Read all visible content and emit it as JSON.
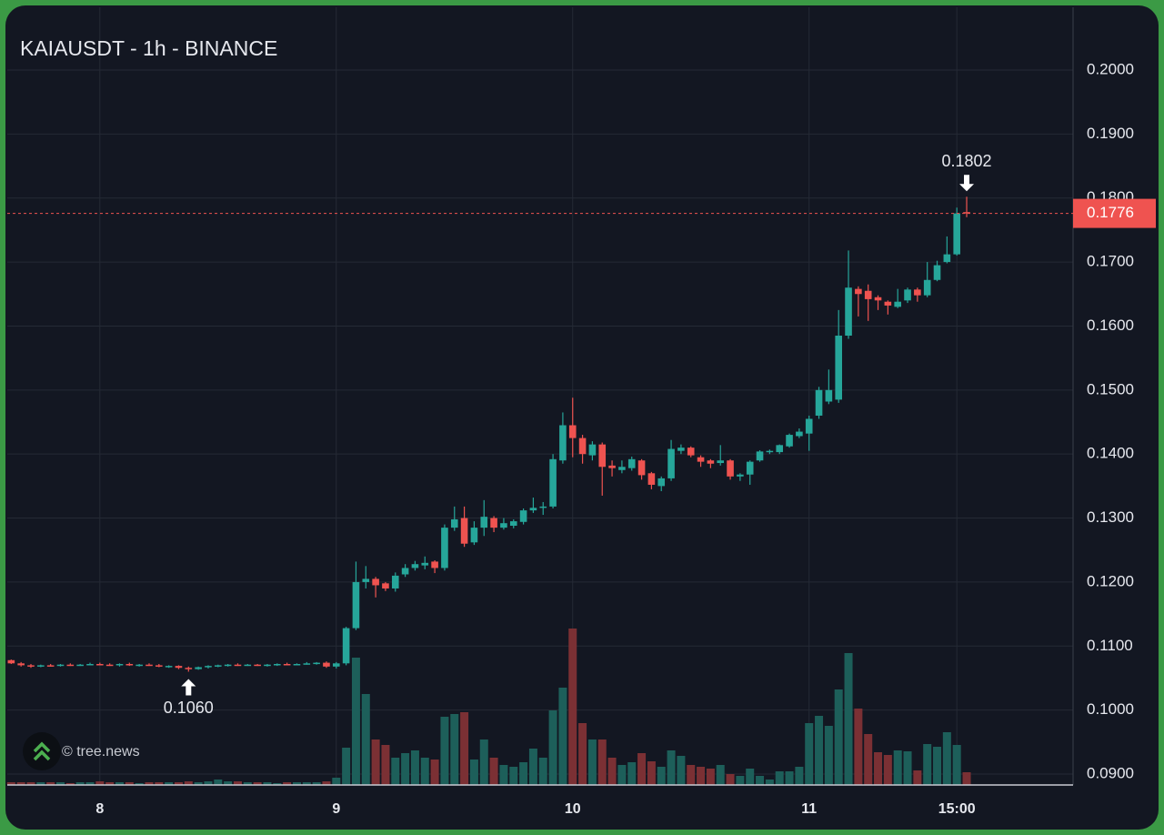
{
  "chart_data": {
    "type": "candlestick",
    "title": "KAIAUSDT - 1h - BINANCE",
    "watermark": "© tree.news",
    "up_color": "#26a69a",
    "down_color": "#ef5350",
    "up_volume_color": "#1d5f5a",
    "down_volume_color": "#7b3034",
    "grid": true,
    "xlim": [
      -9.4,
      98.8
    ],
    "ylim": [
      0.0883,
      0.2098
    ],
    "xticks": [
      {
        "value": 0,
        "label": "8"
      },
      {
        "value": 24,
        "label": "9"
      },
      {
        "value": 48,
        "label": "10"
      },
      {
        "value": 72,
        "label": "11"
      },
      {
        "value": 87,
        "label": "15:00"
      }
    ],
    "yticks": [
      {
        "value": 0.09,
        "label": "0.0900"
      },
      {
        "value": 0.1,
        "label": "0.1000"
      },
      {
        "value": 0.11,
        "label": "0.1100"
      },
      {
        "value": 0.12,
        "label": "0.1200"
      },
      {
        "value": 0.13,
        "label": "0.1300"
      },
      {
        "value": 0.14,
        "label": "0.1400"
      },
      {
        "value": 0.15,
        "label": "0.1500"
      },
      {
        "value": 0.16,
        "label": "0.1600"
      },
      {
        "value": 0.17,
        "label": "0.1700"
      },
      {
        "value": 0.18,
        "label": "0.1800"
      },
      {
        "value": 0.19,
        "label": "0.1900"
      },
      {
        "value": 0.2,
        "label": "0.2000"
      }
    ],
    "last_price": {
      "value": 0.1776,
      "label": "0.1776"
    },
    "annotations": [
      {
        "x": 88,
        "value": 0.1802,
        "label": "0.1802",
        "position": "above"
      },
      {
        "x": 9,
        "value": 0.106,
        "label": "0.1060",
        "position": "below"
      }
    ],
    "x": [
      -9,
      -8,
      -7,
      -6,
      -5,
      -4,
      -3,
      -2,
      -1,
      0,
      1,
      2,
      3,
      4,
      5,
      6,
      7,
      8,
      9,
      10,
      11,
      12,
      13,
      14,
      15,
      16,
      17,
      18,
      19,
      20,
      21,
      22,
      23,
      24,
      25,
      26,
      27,
      28,
      29,
      30,
      31,
      32,
      33,
      34,
      35,
      36,
      37,
      38,
      39,
      40,
      41,
      42,
      43,
      44,
      45,
      46,
      47,
      48,
      49,
      50,
      51,
      52,
      53,
      54,
      55,
      56,
      57,
      58,
      59,
      60,
      61,
      62,
      63,
      64,
      65,
      66,
      67,
      68,
      69,
      70,
      71,
      72,
      73,
      74,
      75,
      76,
      77,
      78,
      79,
      80,
      81,
      82,
      83,
      84,
      85,
      86,
      87,
      88
    ],
    "open": [
      0.1078,
      0.1073,
      0.107,
      0.1068,
      0.107,
      0.1069,
      0.1071,
      0.107,
      0.1071,
      0.1072,
      0.1071,
      0.107,
      0.1072,
      0.107,
      0.1071,
      0.107,
      0.1068,
      0.1069,
      0.1066,
      0.1064,
      0.1067,
      0.1069,
      0.107,
      0.1071,
      0.107,
      0.1071,
      0.107,
      0.1071,
      0.1072,
      0.1071,
      0.1072,
      0.1073,
      0.1074,
      0.1068,
      0.1073,
      0.1128,
      0.12,
      0.1205,
      0.1198,
      0.119,
      0.1212,
      0.1222,
      0.1226,
      0.1232,
      0.1222,
      0.1285,
      0.13,
      0.1262,
      0.1285,
      0.13,
      0.1285,
      0.1288,
      0.1294,
      0.1312,
      0.1316,
      0.1318,
      0.139,
      0.1445,
      0.1425,
      0.1398,
      0.1415,
      0.1382,
      0.1375,
      0.1378,
      0.139,
      0.137,
      0.135,
      0.1362,
      0.1405,
      0.141,
      0.1395,
      0.139,
      0.1386,
      0.139,
      0.1365,
      0.1368,
      0.139,
      0.1403,
      0.1403,
      0.1412,
      0.1428,
      0.1432,
      0.146,
      0.1482,
      0.1485,
      0.1585,
      0.1658,
      0.1655,
      0.1645,
      0.1638,
      0.163,
      0.164,
      0.1657,
      0.1648,
      0.1672,
      0.17,
      0.1712,
      0.1778
    ],
    "high": [
      0.1079,
      0.1075,
      0.1072,
      0.1071,
      0.1072,
      0.1072,
      0.1073,
      0.1072,
      0.1074,
      0.1074,
      0.1073,
      0.1073,
      0.1074,
      0.1072,
      0.1073,
      0.1072,
      0.107,
      0.107,
      0.1068,
      0.1068,
      0.107,
      0.1071,
      0.1072,
      0.1073,
      0.1072,
      0.1072,
      0.1072,
      0.1073,
      0.1074,
      0.1073,
      0.1075,
      0.1075,
      0.1076,
      0.1075,
      0.113,
      0.1232,
      0.1225,
      0.1208,
      0.12,
      0.1215,
      0.1228,
      0.1233,
      0.124,
      0.1234,
      0.129,
      0.1318,
      0.1318,
      0.1295,
      0.1328,
      0.1303,
      0.13,
      0.1298,
      0.1315,
      0.1332,
      0.1325,
      0.14,
      0.1465,
      0.1488,
      0.143,
      0.142,
      0.1418,
      0.139,
      0.139,
      0.1396,
      0.1392,
      0.1372,
      0.1365,
      0.1422,
      0.1415,
      0.1412,
      0.1398,
      0.1392,
      0.1414,
      0.1392,
      0.137,
      0.139,
      0.1406,
      0.1407,
      0.1415,
      0.1432,
      0.144,
      0.146,
      0.1505,
      0.1532,
      0.1625,
      0.1718,
      0.1662,
      0.1665,
      0.1648,
      0.164,
      0.1658,
      0.166,
      0.166,
      0.17,
      0.1702,
      0.174,
      0.1785,
      0.1802
    ],
    "low": [
      0.1072,
      0.1068,
      0.1066,
      0.1067,
      0.1068,
      0.1068,
      0.1069,
      0.1069,
      0.107,
      0.107,
      0.1069,
      0.1068,
      0.1069,
      0.1068,
      0.1069,
      0.1067,
      0.1066,
      0.1064,
      0.106,
      0.1063,
      0.1065,
      0.1067,
      0.1068,
      0.1069,
      0.1069,
      0.1069,
      0.1068,
      0.1069,
      0.107,
      0.107,
      0.1071,
      0.1071,
      0.1066,
      0.1065,
      0.107,
      0.1125,
      0.119,
      0.1176,
      0.1186,
      0.1185,
      0.1208,
      0.1218,
      0.122,
      0.1214,
      0.1218,
      0.128,
      0.1255,
      0.1258,
      0.1272,
      0.1278,
      0.1282,
      0.1284,
      0.129,
      0.1308,
      0.1305,
      0.1315,
      0.1385,
      0.1395,
      0.1385,
      0.139,
      0.1335,
      0.1365,
      0.137,
      0.1374,
      0.136,
      0.1345,
      0.1342,
      0.1358,
      0.14,
      0.1395,
      0.138,
      0.1378,
      0.1382,
      0.136,
      0.1358,
      0.1352,
      0.1388,
      0.14,
      0.14,
      0.141,
      0.1425,
      0.1405,
      0.1455,
      0.1478,
      0.148,
      0.158,
      0.1615,
      0.1608,
      0.1625,
      0.1618,
      0.1628,
      0.1636,
      0.1638,
      0.1645,
      0.167,
      0.1698,
      0.171,
      0.177
    ],
    "close": [
      0.1073,
      0.107,
      0.1068,
      0.107,
      0.1069,
      0.1071,
      0.107,
      0.1071,
      0.1072,
      0.1071,
      0.107,
      0.1072,
      0.107,
      0.1071,
      0.107,
      0.1068,
      0.1069,
      0.1066,
      0.1064,
      0.1067,
      0.1069,
      0.107,
      0.1071,
      0.107,
      0.1071,
      0.107,
      0.1071,
      0.1072,
      0.1071,
      0.1072,
      0.1073,
      0.1074,
      0.1068,
      0.1073,
      0.1128,
      0.12,
      0.1205,
      0.1195,
      0.119,
      0.121,
      0.1222,
      0.1228,
      0.123,
      0.1222,
      0.1285,
      0.1298,
      0.126,
      0.1285,
      0.1302,
      0.1285,
      0.1292,
      0.1295,
      0.1312,
      0.1316,
      0.1318,
      0.1392,
      0.1445,
      0.1425,
      0.14,
      0.1415,
      0.138,
      0.1378,
      0.138,
      0.1392,
      0.1367,
      0.1352,
      0.1362,
      0.1408,
      0.141,
      0.1398,
      0.1388,
      0.1385,
      0.139,
      0.1365,
      0.1368,
      0.1388,
      0.1404,
      0.1405,
      0.1414,
      0.143,
      0.1435,
      0.1455,
      0.15,
      0.15,
      0.1585,
      0.166,
      0.165,
      0.1642,
      0.164,
      0.1632,
      0.1638,
      0.1657,
      0.1648,
      0.1672,
      0.1695,
      0.1712,
      0.1776,
      0.1776
    ],
    "volume": [
      3,
      3,
      3,
      3,
      3,
      3,
      2,
      3,
      3,
      4,
      3,
      3,
      3,
      2,
      3,
      3,
      3,
      3,
      4,
      3,
      4,
      6,
      4,
      4,
      3,
      3,
      3,
      2,
      3,
      3,
      3,
      3,
      4,
      8,
      41,
      140,
      100,
      50,
      44,
      30,
      35,
      38,
      30,
      28,
      75,
      78,
      80,
      28,
      50,
      30,
      22,
      20,
      25,
      40,
      30,
      82,
      107,
      172,
      68,
      50,
      50,
      30,
      22,
      25,
      35,
      26,
      20,
      38,
      32,
      22,
      20,
      18,
      22,
      12,
      10,
      18,
      10,
      6,
      15,
      15,
      20,
      68,
      76,
      65,
      105,
      145,
      84,
      56,
      36,
      33,
      38,
      37,
      16,
      45,
      42,
      58,
      44,
      14
    ]
  }
}
